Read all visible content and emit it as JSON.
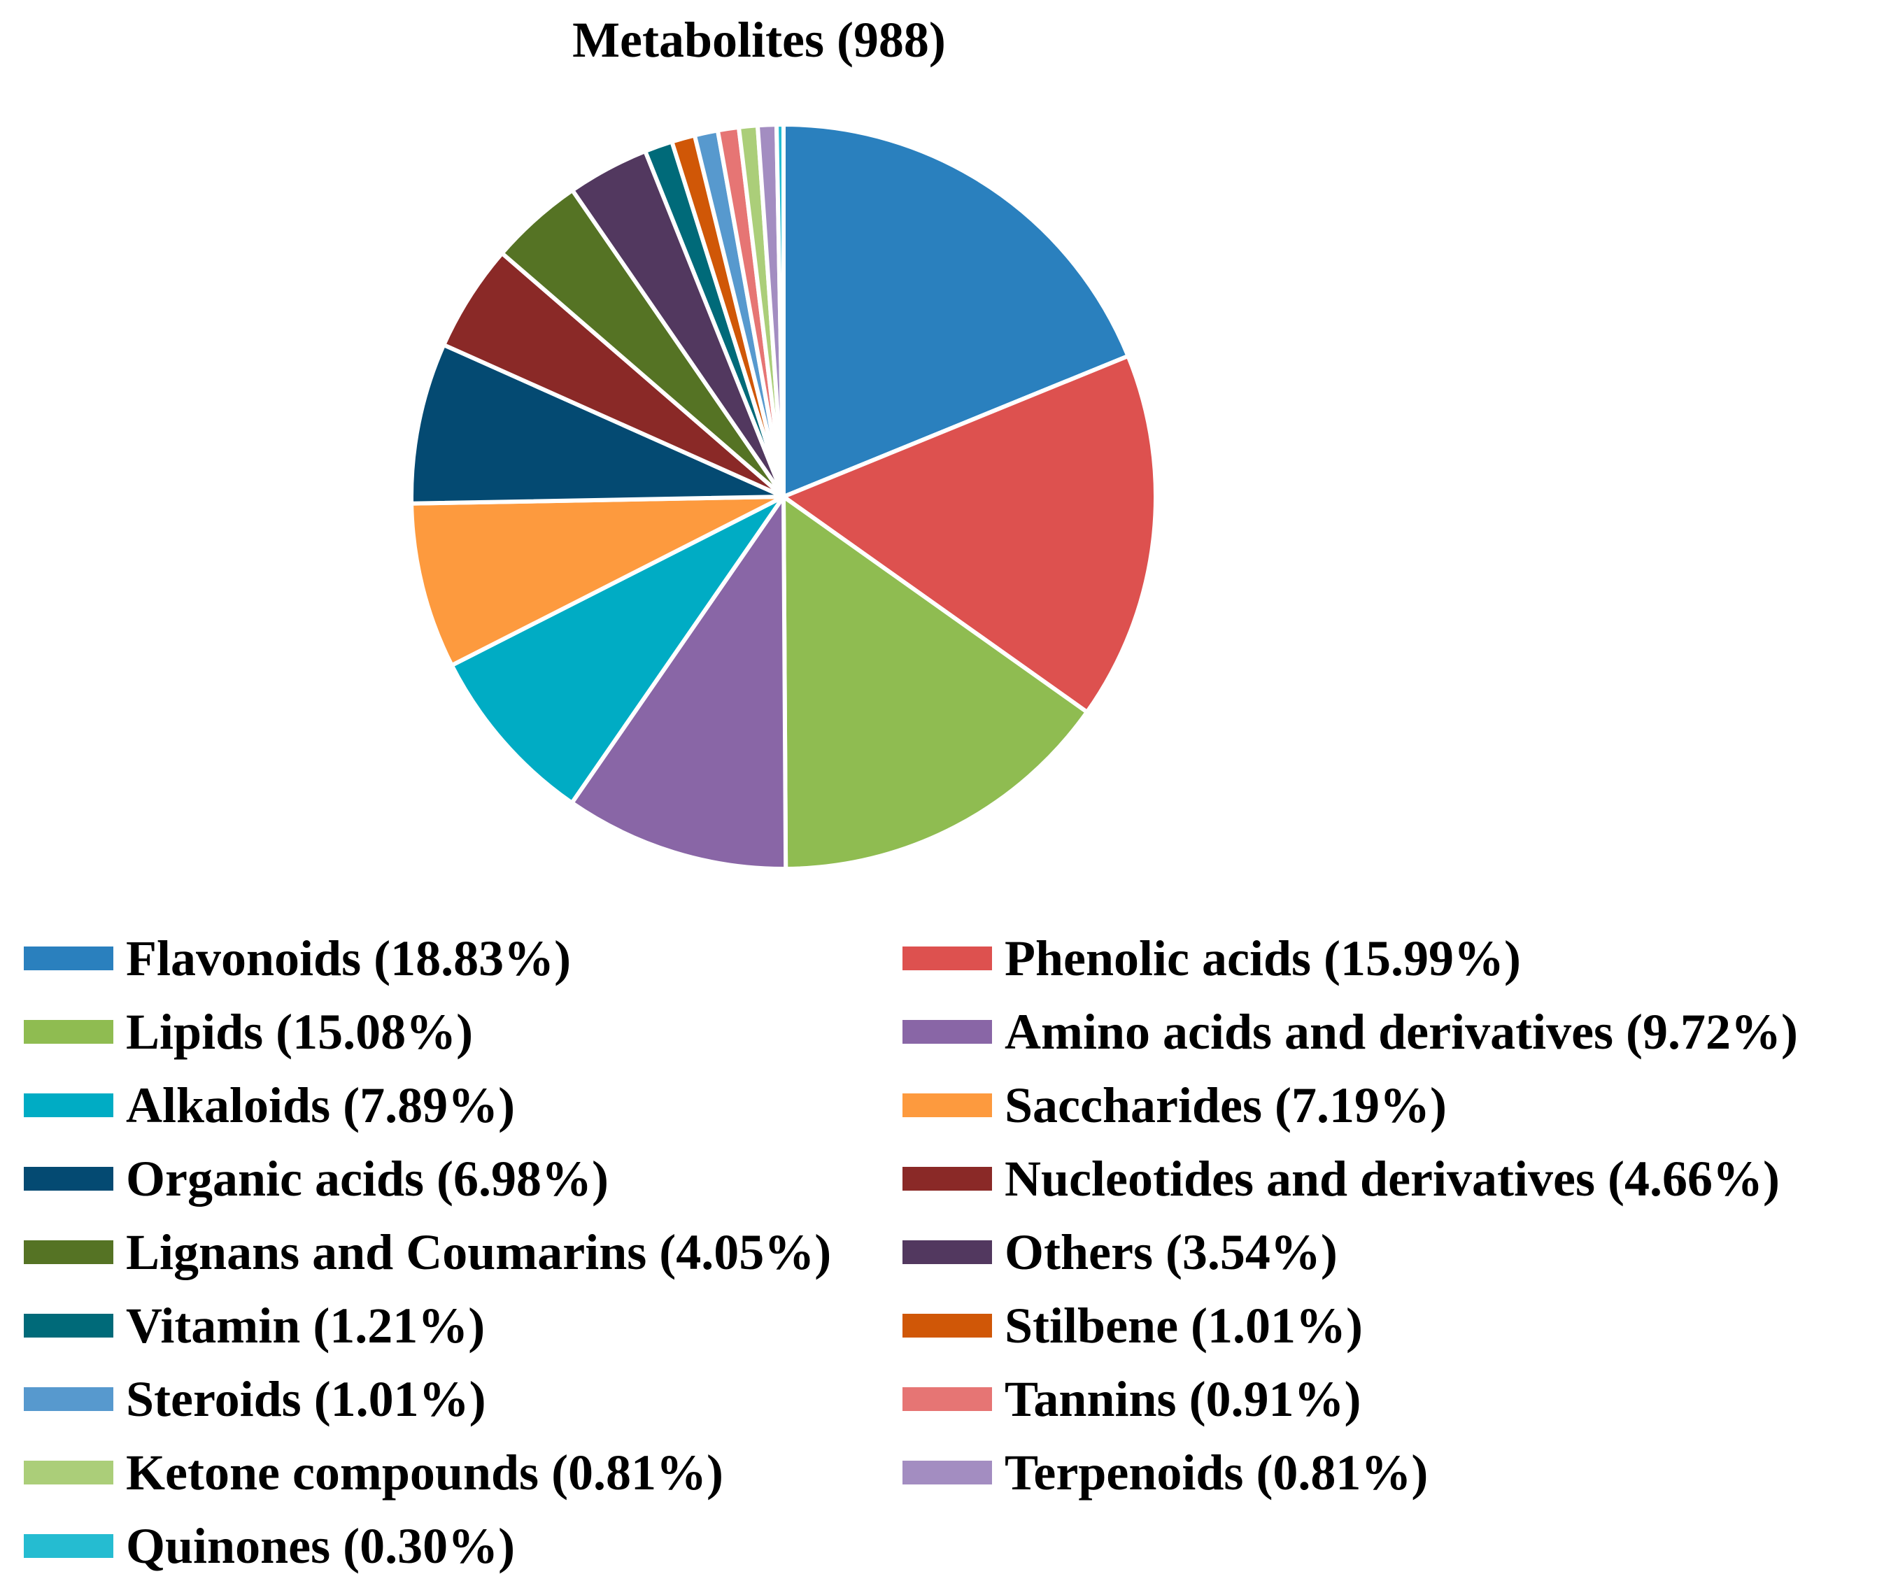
{
  "chart_data": {
    "type": "pie",
    "title": "Metabolites (988)",
    "start_angle": "12 o'clock",
    "direction": "clockwise",
    "legend_placement": "bottom, two columns",
    "slices": [
      {
        "name": "Flavonoids",
        "label": "Flavonoids (18.83%)",
        "value": 18.83,
        "color": "#2A80BE"
      },
      {
        "name": "Phenolic acids",
        "label": "Phenolic acids (15.99%)",
        "value": 15.99,
        "color": "#DD514F"
      },
      {
        "name": "Lipids",
        "label": "Lipids (15.08%)",
        "value": 15.08,
        "color": "#8FBC51"
      },
      {
        "name": "Amino acids and derivatives",
        "label": "Amino acids and derivatives (9.72%)",
        "value": 9.72,
        "color": "#8966A6"
      },
      {
        "name": "Alkaloids",
        "label": "Alkaloids (7.89%)",
        "value": 7.89,
        "color": "#00ACC4"
      },
      {
        "name": "Saccharides",
        "label": "Saccharides (7.19%)",
        "value": 7.19,
        "color": "#FD9A3E"
      },
      {
        "name": "Organic acids",
        "label": "Organic acids (6.98%)",
        "value": 6.98,
        "color": "#044A72"
      },
      {
        "name": "Nucleotides and derivatives",
        "label": "Nucleotides and derivatives (4.66%)",
        "value": 4.66,
        "color": "#8A2927"
      },
      {
        "name": "Lignans and Coumarins",
        "label": "Lignans and Coumarins (4.05%)",
        "value": 4.05,
        "color": "#557324"
      },
      {
        "name": "Others",
        "label": "Others (3.54%)",
        "value": 3.54,
        "color": "#52385F"
      },
      {
        "name": "Vitamin",
        "label": "Vitamin (1.21%)",
        "value": 1.21,
        "color": "#006A79"
      },
      {
        "name": "Stilbene",
        "label": "Stilbene (1.01%)",
        "value": 1.01,
        "color": "#D05707"
      },
      {
        "name": "Steroids",
        "label": "Steroids (1.01%)",
        "value": 1.01,
        "color": "#5799CE"
      },
      {
        "name": "Tannins",
        "label": "Tannins (0.91%)",
        "value": 0.91,
        "color": "#E67574"
      },
      {
        "name": "Ketone compounds",
        "label": "Ketone compounds (0.81%)",
        "value": 0.81,
        "color": "#ABCE79"
      },
      {
        "name": "Terpenoids",
        "label": "Terpenoids (0.81%)",
        "value": 0.81,
        "color": "#A38DC1"
      },
      {
        "name": "Quinones",
        "label": "Quinones (0.30%)",
        "value": 0.3,
        "color": "#25BCD1"
      }
    ]
  }
}
